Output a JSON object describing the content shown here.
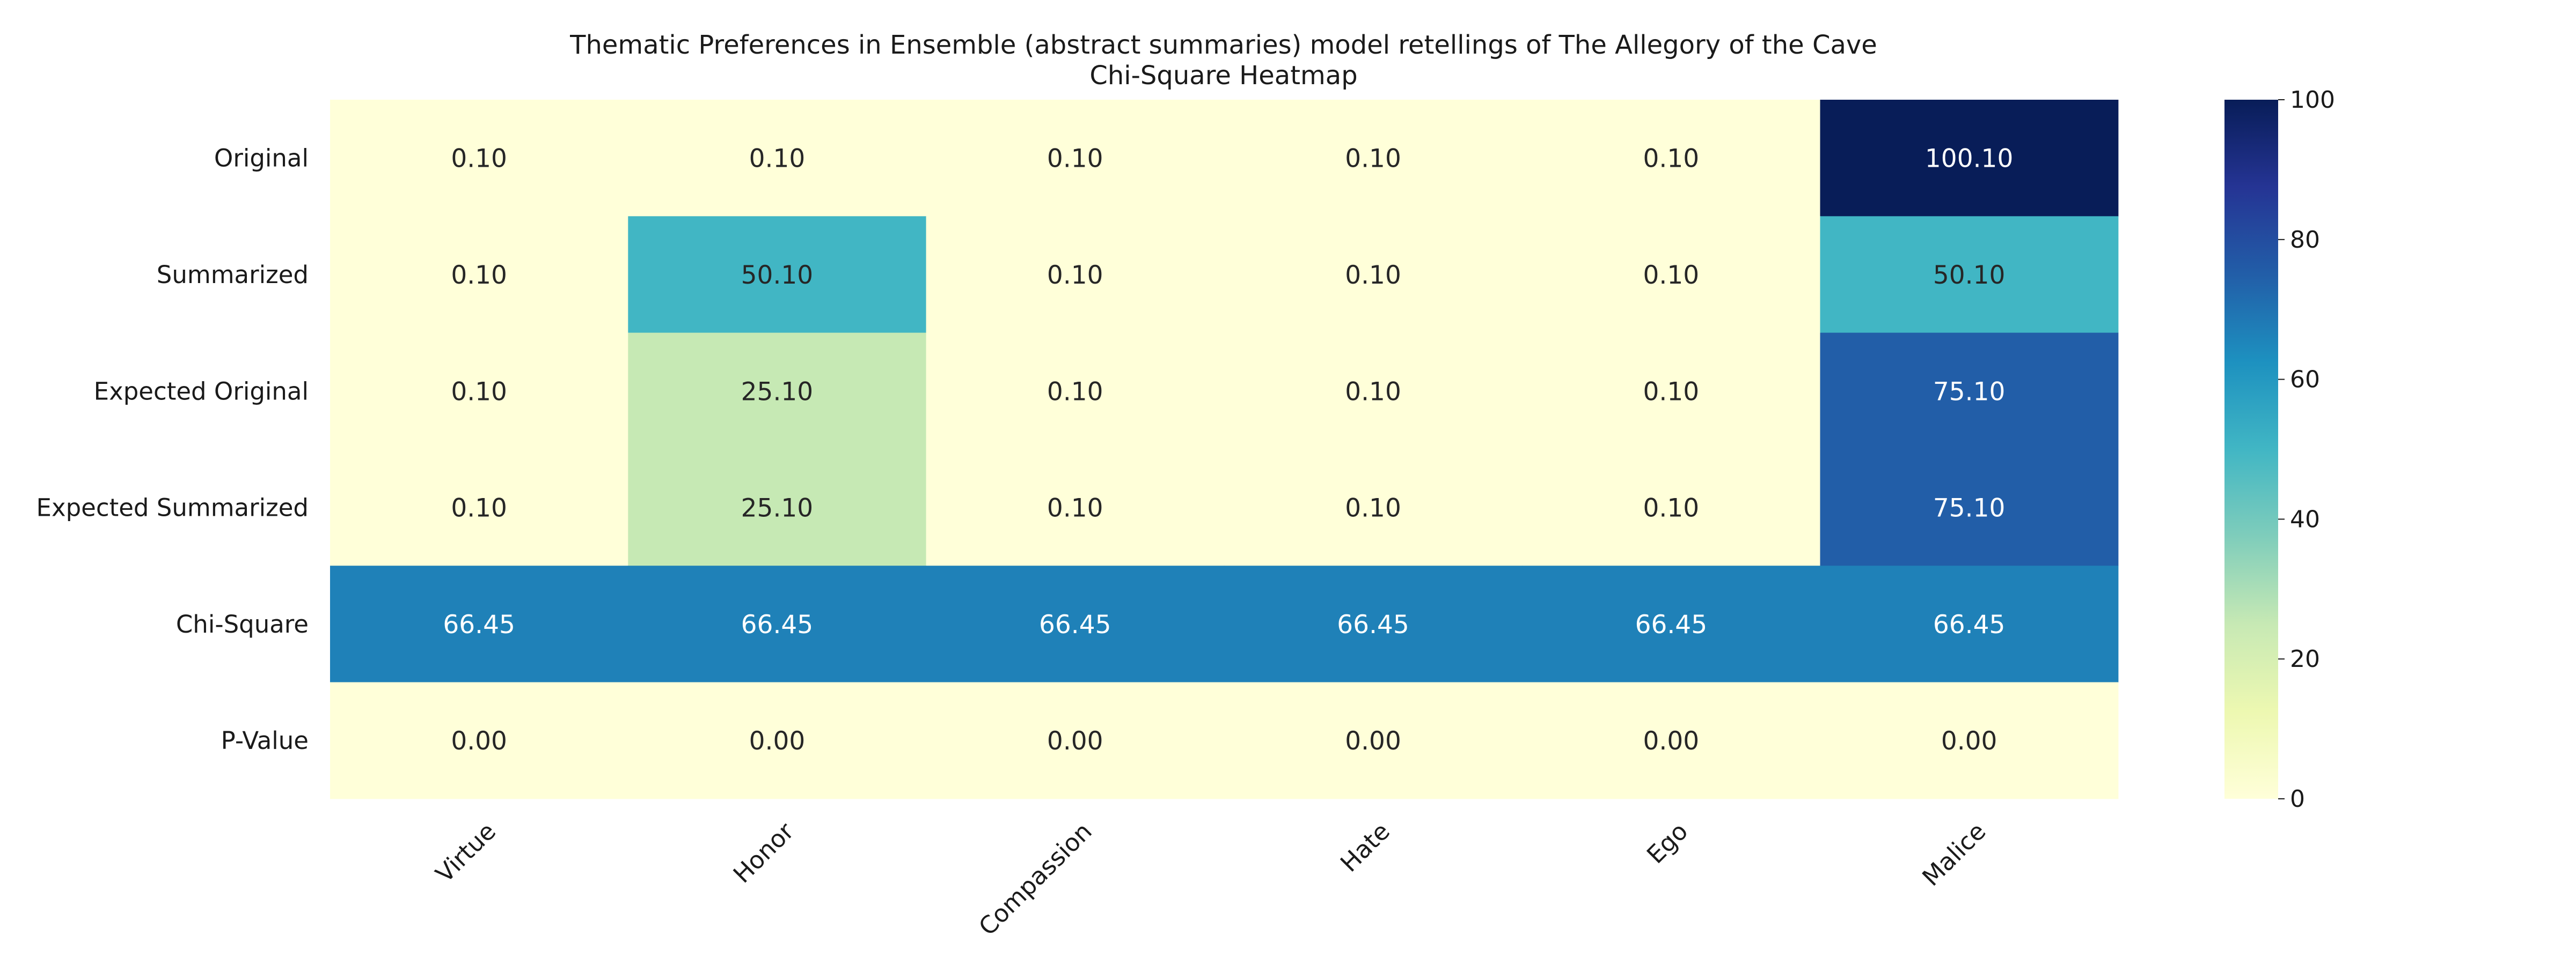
{
  "chart_data": {
    "type": "heatmap",
    "title": "Thematic Preferences in Ensemble (abstract summaries) model retellings of The Allegory of the Cave",
    "subtitle": "Chi-Square Heatmap",
    "rows": [
      "Original",
      "Summarized",
      "Expected Original",
      "Expected Summarized",
      "Chi-Square",
      "P-Value"
    ],
    "columns": [
      "Virtue",
      "Honor",
      "Compassion",
      "Hate",
      "Ego",
      "Malice"
    ],
    "values": [
      [
        0.1,
        0.1,
        0.1,
        0.1,
        0.1,
        100.1
      ],
      [
        0.1,
        50.1,
        0.1,
        0.1,
        0.1,
        50.1
      ],
      [
        0.1,
        25.1,
        0.1,
        0.1,
        0.1,
        75.1
      ],
      [
        0.1,
        25.1,
        0.1,
        0.1,
        0.1,
        75.1
      ],
      [
        66.45,
        66.45,
        66.45,
        66.45,
        66.45,
        66.45
      ],
      [
        0.0,
        0.0,
        0.0,
        0.0,
        0.0,
        0.0
      ]
    ],
    "value_labels": [
      [
        "0.10",
        "0.10",
        "0.10",
        "0.10",
        "0.10",
        "100.10"
      ],
      [
        "0.10",
        "50.10",
        "0.10",
        "0.10",
        "0.10",
        "50.10"
      ],
      [
        "0.10",
        "25.10",
        "0.10",
        "0.10",
        "0.10",
        "75.10"
      ],
      [
        "0.10",
        "25.10",
        "0.10",
        "0.10",
        "0.10",
        "75.10"
      ],
      [
        "66.45",
        "66.45",
        "66.45",
        "66.45",
        "66.45",
        "66.45"
      ],
      [
        "0.00",
        "0.00",
        "0.00",
        "0.00",
        "0.00",
        "0.00"
      ]
    ],
    "colormap": "YlGnBu",
    "colorbar": {
      "min": 0,
      "max": 100,
      "ticks": [
        0,
        20,
        40,
        60,
        80,
        100
      ],
      "tick_labels": [
        "0",
        "20",
        "40",
        "60",
        "80",
        "100"
      ],
      "placement": "right"
    },
    "x_tick_rotation": "45-degrees",
    "grid": false
  }
}
